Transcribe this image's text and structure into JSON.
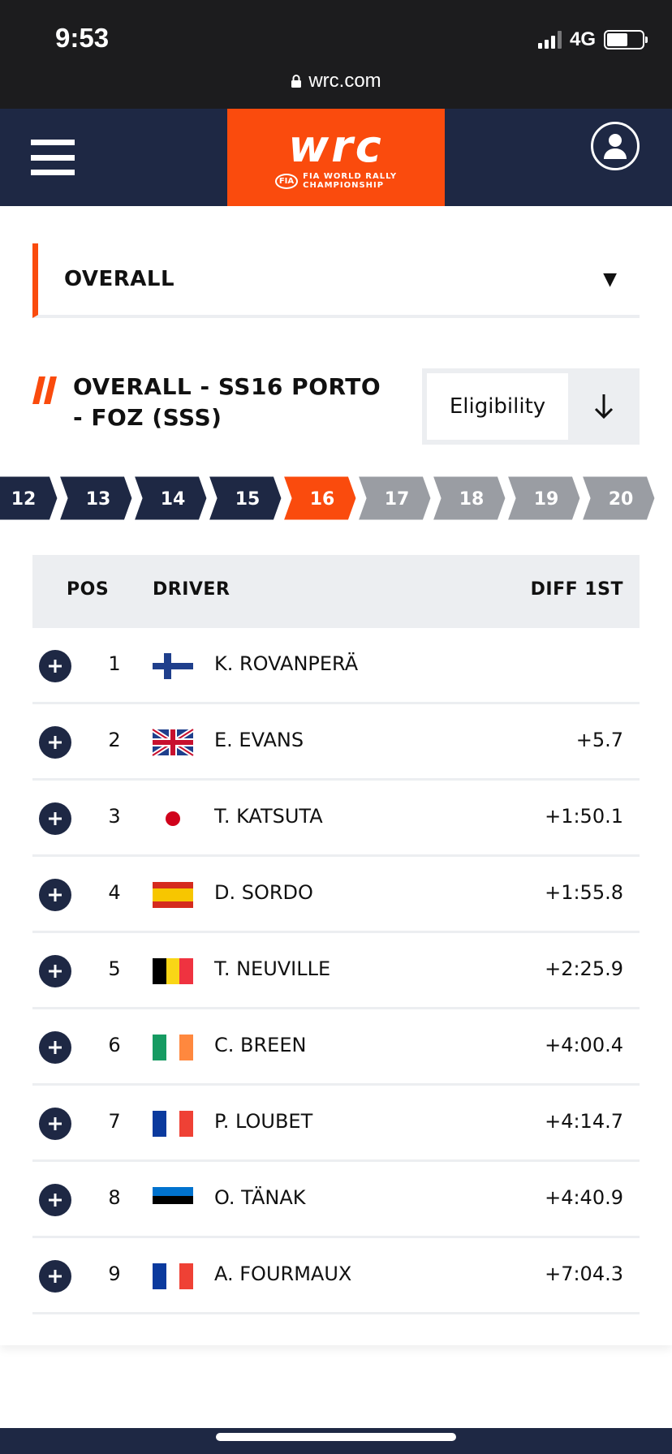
{
  "status": {
    "time": "9:53",
    "network": "4G",
    "battery_level": 0.6
  },
  "browser": {
    "url": "wrc.com"
  },
  "header": {
    "logo_text": "wrc",
    "logo_fia": "FIA",
    "logo_sub1": "FIA WORLD RALLY",
    "logo_sub2": "CHAMPIONSHIP"
  },
  "filter": {
    "selected": "OVERALL"
  },
  "stage": {
    "title": "OVERALL - SS16 PORTO - FOZ (SSS)",
    "eligibility_label": "Eligibility"
  },
  "stages": {
    "items": [
      "12",
      "13",
      "14",
      "15",
      "16",
      "17",
      "18",
      "19",
      "20"
    ],
    "active": "16",
    "completed_until": "16"
  },
  "table": {
    "headers": {
      "pos": "POS",
      "driver": "DRIVER",
      "diff": "DIFF 1ST"
    },
    "rows": [
      {
        "pos": "1",
        "driver": "K. ROVANPERÄ",
        "diff": "",
        "flag": "finland"
      },
      {
        "pos": "2",
        "driver": "E. EVANS",
        "diff": "+5.7",
        "flag": "uk"
      },
      {
        "pos": "3",
        "driver": "T. KATSUTA",
        "diff": "+1:50.1",
        "flag": "japan"
      },
      {
        "pos": "4",
        "driver": "D. SORDO",
        "diff": "+1:55.8",
        "flag": "spain"
      },
      {
        "pos": "5",
        "driver": "T. NEUVILLE",
        "diff": "+2:25.9",
        "flag": "belgium"
      },
      {
        "pos": "6",
        "driver": "C. BREEN",
        "diff": "+4:00.4",
        "flag": "ireland"
      },
      {
        "pos": "7",
        "driver": "P. LOUBET",
        "diff": "+4:14.7",
        "flag": "france"
      },
      {
        "pos": "8",
        "driver": "O. TÄNAK",
        "diff": "+4:40.9",
        "flag": "estonia"
      },
      {
        "pos": "9",
        "driver": "A. FOURMAUX",
        "diff": "+7:04.3",
        "flag": "france"
      }
    ]
  },
  "colors": {
    "brand_orange": "#fa4b0d",
    "navy": "#1e2844",
    "stage_future": "#9a9da3",
    "row_divider": "#eceef1"
  }
}
